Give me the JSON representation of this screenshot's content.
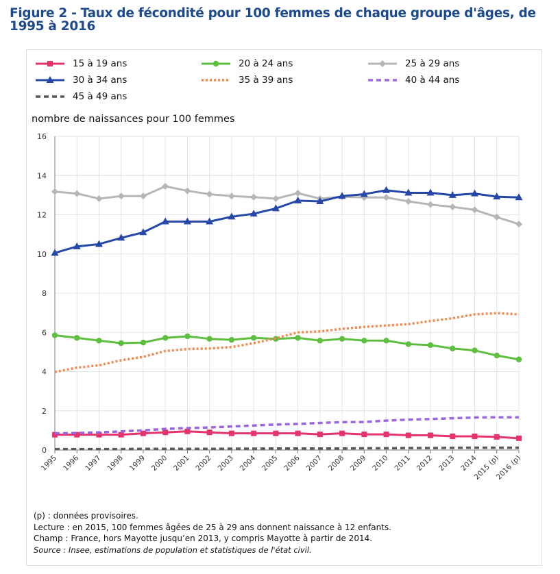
{
  "figure": {
    "title": "Figure 2 - Taux de fécondité pour 100 femmes de chaque groupe d'âges, de 1995 à 2016"
  },
  "notes": {
    "provisional": "(p) : données provisoires.",
    "reading": "Lecture : en 2015, 100 femmes âgées de 25 à 29 ans donnent naissance à 12 enfants.",
    "scope": "Champ : France, hors Mayotte jusqu’en 2013, y compris Mayotte à partir de 2014.",
    "source": "Source : Insee, estimations de population et statistiques de l'état civil."
  },
  "chart_data": {
    "type": "line",
    "ylabel": "nombre de naissances pour 100 femmes",
    "ylim": [
      0,
      16
    ],
    "yticks": [
      0,
      2,
      4,
      6,
      8,
      10,
      12,
      14,
      16
    ],
    "grid": true,
    "legend_position": "top",
    "x": [
      "1995",
      "1996",
      "1997",
      "1998",
      "1999",
      "2000",
      "2001",
      "2002",
      "2003",
      "2004",
      "2005",
      "2006",
      "2007",
      "2008",
      "2009",
      "2010",
      "2011",
      "2012",
      "2013",
      "2014",
      "2015 (p)",
      "2016 (p)"
    ],
    "series": [
      {
        "name": "15 à 19 ans",
        "color": "#e5336b",
        "style": "solid",
        "marker": "square",
        "values": [
          0.78,
          0.78,
          0.78,
          0.78,
          0.85,
          0.9,
          0.95,
          0.9,
          0.85,
          0.85,
          0.85,
          0.85,
          0.8,
          0.85,
          0.8,
          0.8,
          0.75,
          0.75,
          0.7,
          0.7,
          0.67,
          0.6
        ]
      },
      {
        "name": "20 à 24 ans",
        "color": "#5dbe3f",
        "style": "solid",
        "marker": "circle",
        "values": [
          5.85,
          5.72,
          5.58,
          5.45,
          5.48,
          5.72,
          5.8,
          5.67,
          5.62,
          5.72,
          5.67,
          5.72,
          5.58,
          5.67,
          5.58,
          5.58,
          5.4,
          5.35,
          5.18,
          5.08,
          4.82,
          4.62
        ]
      },
      {
        "name": "25 à 29 ans",
        "color": "#b6b6b6",
        "style": "solid",
        "marker": "diamond",
        "values": [
          13.18,
          13.08,
          12.82,
          12.95,
          12.95,
          13.45,
          13.22,
          13.05,
          12.95,
          12.9,
          12.82,
          13.1,
          12.82,
          12.92,
          12.88,
          12.88,
          12.68,
          12.52,
          12.4,
          12.25,
          11.88,
          11.52
        ]
      },
      {
        "name": "30 à 34 ans",
        "color": "#2547a8",
        "style": "solid",
        "marker": "triangle",
        "values": [
          10.05,
          10.38,
          10.5,
          10.82,
          11.1,
          11.65,
          11.65,
          11.65,
          11.9,
          12.05,
          12.32,
          12.72,
          12.68,
          12.95,
          13.05,
          13.25,
          13.12,
          13.12,
          13.0,
          13.08,
          12.92,
          12.88
        ]
      },
      {
        "name": "35 à 39 ans",
        "color": "#f2894f",
        "style": "dotted",
        "marker": "none",
        "values": [
          3.98,
          4.2,
          4.32,
          4.58,
          4.75,
          5.05,
          5.15,
          5.18,
          5.25,
          5.45,
          5.7,
          6.0,
          6.05,
          6.18,
          6.28,
          6.35,
          6.42,
          6.58,
          6.72,
          6.92,
          6.98,
          6.92
        ]
      },
      {
        "name": "40 à 44 ans",
        "color": "#9a66dd",
        "style": "dashed",
        "marker": "none",
        "values": [
          0.85,
          0.87,
          0.9,
          0.95,
          1.0,
          1.08,
          1.12,
          1.15,
          1.2,
          1.25,
          1.3,
          1.33,
          1.38,
          1.42,
          1.43,
          1.5,
          1.55,
          1.58,
          1.62,
          1.66,
          1.67,
          1.67
        ]
      },
      {
        "name": "45 à 49 ans",
        "color": "#5a5a5a",
        "style": "dashed",
        "marker": "none",
        "values": [
          0.05,
          0.05,
          0.05,
          0.05,
          0.06,
          0.06,
          0.06,
          0.06,
          0.07,
          0.07,
          0.08,
          0.08,
          0.08,
          0.08,
          0.09,
          0.09,
          0.1,
          0.1,
          0.11,
          0.12,
          0.12,
          0.12
        ]
      }
    ]
  }
}
